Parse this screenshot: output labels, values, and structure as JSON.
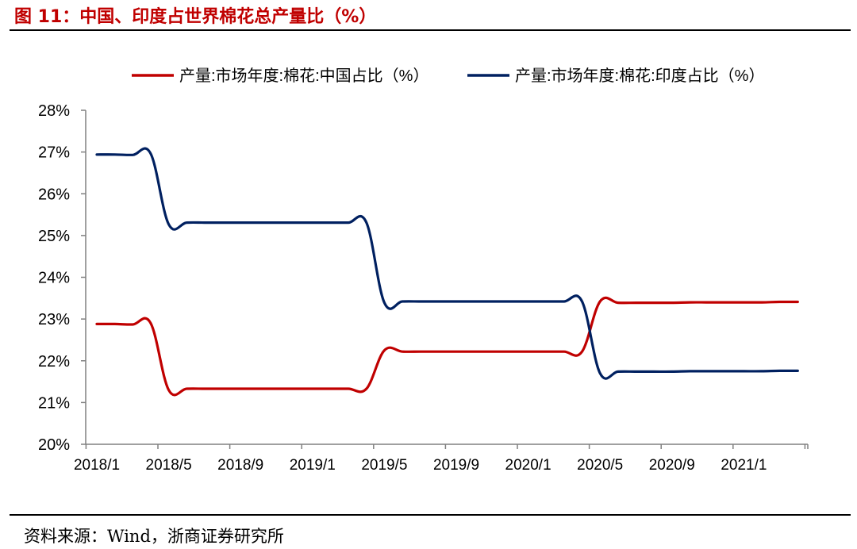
{
  "figure": {
    "title": "图  11：中国、印度占世界棉花总产量比（%）",
    "source": "资料来源：Wind，浙商证券研究所"
  },
  "colors": {
    "china": "#c00000",
    "india": "#002060",
    "axis": "#808080"
  },
  "chart_data": {
    "type": "line",
    "title": "",
    "xlabel": "",
    "ylabel": "",
    "ylim": [
      20,
      28
    ],
    "y_unit": "%",
    "grid": false,
    "legend_position": "top",
    "x_ticks": [
      "2018/1",
      "2018/5",
      "2018/9",
      "2019/1",
      "2019/5",
      "2019/9",
      "2020/1",
      "2020/5",
      "2020/9",
      "2021/1"
    ],
    "y_ticks": [
      "20%",
      "21%",
      "22%",
      "23%",
      "24%",
      "25%",
      "26%",
      "27%",
      "28%"
    ],
    "series": [
      {
        "name": "产量:市场年度:棉花:中国占比（%）",
        "color": "#c00000",
        "points": [
          [
            "2018/1",
            22.88
          ],
          [
            "2018/2",
            22.88
          ],
          [
            "2018/3",
            22.87
          ],
          [
            "2018/4",
            22.9
          ],
          [
            "2018/5",
            21.3
          ],
          [
            "2018/6",
            21.33
          ],
          [
            "2018/7",
            21.33
          ],
          [
            "2018/8",
            21.33
          ],
          [
            "2018/9",
            21.33
          ],
          [
            "2018/10",
            21.33
          ],
          [
            "2018/11",
            21.33
          ],
          [
            "2018/12",
            21.33
          ],
          [
            "2019/1",
            21.33
          ],
          [
            "2019/2",
            21.33
          ],
          [
            "2019/3",
            21.33
          ],
          [
            "2019/4",
            21.33
          ],
          [
            "2019/5",
            22.25
          ],
          [
            "2019/6",
            22.22
          ],
          [
            "2019/7",
            22.22
          ],
          [
            "2019/8",
            22.22
          ],
          [
            "2019/9",
            22.22
          ],
          [
            "2019/10",
            22.22
          ],
          [
            "2019/11",
            22.22
          ],
          [
            "2019/12",
            22.22
          ],
          [
            "2020/1",
            22.22
          ],
          [
            "2020/2",
            22.22
          ],
          [
            "2020/3",
            22.22
          ],
          [
            "2020/4",
            22.22
          ],
          [
            "2020/5",
            23.42
          ],
          [
            "2020/6",
            23.39
          ],
          [
            "2020/7",
            23.39
          ],
          [
            "2020/8",
            23.39
          ],
          [
            "2020/9",
            23.39
          ],
          [
            "2020/10",
            23.4
          ],
          [
            "2020/11",
            23.4
          ],
          [
            "2020/12",
            23.4
          ],
          [
            "2021/1",
            23.4
          ],
          [
            "2021/2",
            23.4
          ],
          [
            "2021/3",
            23.41
          ],
          [
            "2021/4",
            23.41
          ]
        ]
      },
      {
        "name": "产量:市场年度:棉花:印度占比（%）",
        "color": "#002060",
        "points": [
          [
            "2018/1",
            26.94
          ],
          [
            "2018/2",
            26.94
          ],
          [
            "2018/3",
            26.93
          ],
          [
            "2018/4",
            26.96
          ],
          [
            "2018/5",
            25.27
          ],
          [
            "2018/6",
            25.31
          ],
          [
            "2018/7",
            25.31
          ],
          [
            "2018/8",
            25.31
          ],
          [
            "2018/9",
            25.31
          ],
          [
            "2018/10",
            25.31
          ],
          [
            "2018/11",
            25.31
          ],
          [
            "2018/12",
            25.31
          ],
          [
            "2019/1",
            25.31
          ],
          [
            "2019/2",
            25.31
          ],
          [
            "2019/3",
            25.31
          ],
          [
            "2019/4",
            25.31
          ],
          [
            "2019/5",
            23.39
          ],
          [
            "2019/6",
            23.42
          ],
          [
            "2019/7",
            23.42
          ],
          [
            "2019/8",
            23.42
          ],
          [
            "2019/9",
            23.42
          ],
          [
            "2019/10",
            23.42
          ],
          [
            "2019/11",
            23.42
          ],
          [
            "2019/12",
            23.42
          ],
          [
            "2020/1",
            23.42
          ],
          [
            "2020/2",
            23.42
          ],
          [
            "2020/3",
            23.42
          ],
          [
            "2020/4",
            23.42
          ],
          [
            "2020/5",
            21.7
          ],
          [
            "2020/6",
            21.74
          ],
          [
            "2020/7",
            21.74
          ],
          [
            "2020/8",
            21.74
          ],
          [
            "2020/9",
            21.74
          ],
          [
            "2020/10",
            21.75
          ],
          [
            "2020/11",
            21.75
          ],
          [
            "2020/12",
            21.75
          ],
          [
            "2021/1",
            21.75
          ],
          [
            "2021/2",
            21.75
          ],
          [
            "2021/3",
            21.76
          ],
          [
            "2021/4",
            21.76
          ]
        ]
      }
    ]
  }
}
